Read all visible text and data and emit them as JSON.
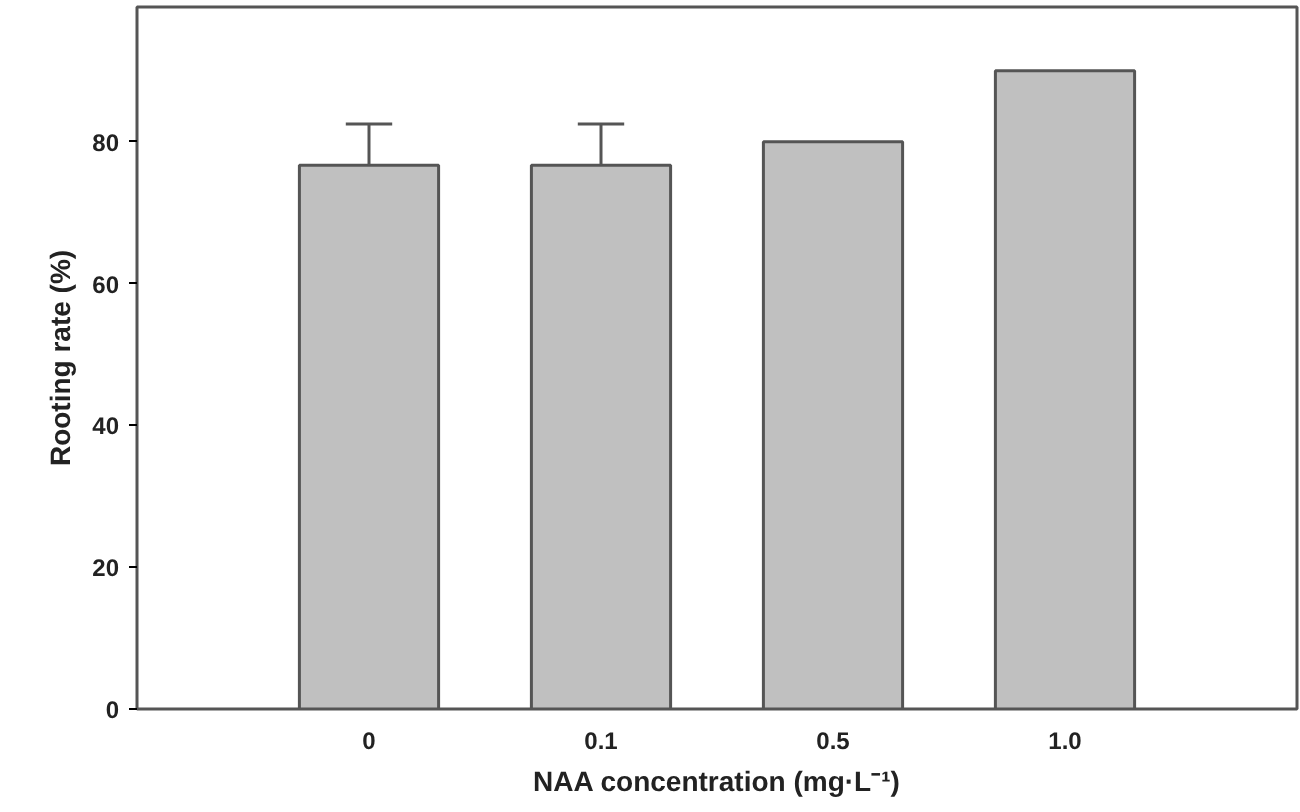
{
  "chart_data": {
    "type": "bar",
    "xlabel": "NAA concentration (mg·L⁻¹)",
    "ylabel": "Rooting rate (%)",
    "categories": [
      "0",
      "0.1",
      "0.5",
      "1.0"
    ],
    "values": [
      76.7,
      76.7,
      80,
      90
    ],
    "errors": [
      [
        76.7,
        82.5
      ],
      [
        76.7,
        82.5
      ],
      null,
      null
    ],
    "color": "#c0c0c0",
    "ylim": [
      0,
      99
    ],
    "yticks": [
      0,
      20,
      40,
      60,
      80
    ],
    "grid": false
  }
}
